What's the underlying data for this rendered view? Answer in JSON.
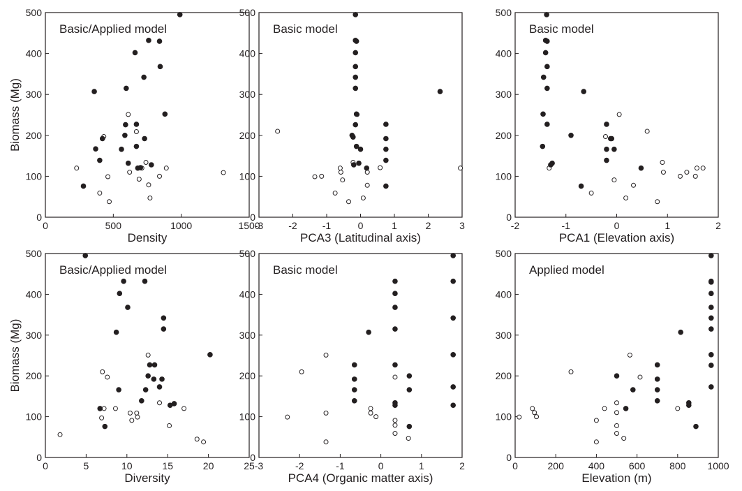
{
  "chart_data": [
    {
      "type": "scatter",
      "title": "Basic/Applied model",
      "xlabel": "Density",
      "ylabel": "Biomass (Mg)",
      "xlim": [
        0,
        1500
      ],
      "ylim": [
        0,
        500
      ],
      "xticks": [
        "0",
        "500",
        "1000",
        "1500"
      ],
      "yticks": [
        "0",
        "100",
        "200",
        "300",
        "400",
        "500"
      ],
      "filled": [
        [
          990,
          495
        ],
        [
          760,
          432
        ],
        [
          840,
          430
        ],
        [
          660,
          402
        ],
        [
          845,
          368
        ],
        [
          725,
          342
        ],
        [
          360,
          307
        ],
        [
          595,
          315
        ],
        [
          880,
          252
        ],
        [
          670,
          227
        ],
        [
          590,
          226
        ],
        [
          420,
          192
        ],
        [
          585,
          200
        ],
        [
          730,
          192
        ],
        [
          670,
          173
        ],
        [
          370,
          167
        ],
        [
          560,
          166
        ],
        [
          400,
          139
        ],
        [
          780,
          128
        ],
        [
          610,
          132
        ],
        [
          700,
          121
        ],
        [
          680,
          120
        ],
        [
          280,
          76
        ]
      ],
      "hollow": [
        [
          610,
          251
        ],
        [
          430,
          197
        ],
        [
          670,
          209
        ],
        [
          740,
          134
        ],
        [
          230,
          120
        ],
        [
          620,
          110
        ],
        [
          710,
          120
        ],
        [
          460,
          99
        ],
        [
          690,
          93
        ],
        [
          890,
          120
        ],
        [
          840,
          100
        ],
        [
          1310,
          109
        ],
        [
          760,
          79
        ],
        [
          400,
          59
        ],
        [
          470,
          38
        ],
        [
          770,
          47
        ]
      ]
    },
    {
      "type": "scatter",
      "title": "Basic model",
      "xlabel": "PCA3 (Latitudinal axis)",
      "ylabel": "",
      "xlim": [
        -3,
        3
      ],
      "ylim": [
        0,
        500
      ],
      "xticks": [
        "-3",
        "-2",
        "-1",
        "0",
        "1",
        "2",
        "3"
      ],
      "yticks": [
        "0",
        "100",
        "200",
        "300",
        "400",
        "500"
      ],
      "filled": [
        [
          -0.15,
          495
        ],
        [
          -0.15,
          432
        ],
        [
          -0.12,
          430
        ],
        [
          -0.15,
          402
        ],
        [
          -0.15,
          368
        ],
        [
          -0.15,
          342
        ],
        [
          -0.15,
          315
        ],
        [
          2.35,
          307
        ],
        [
          -0.12,
          252
        ],
        [
          0.75,
          227
        ],
        [
          -0.15,
          226
        ],
        [
          -0.25,
          200
        ],
        [
          0.75,
          192
        ],
        [
          -0.22,
          196
        ],
        [
          -0.12,
          173
        ],
        [
          0.75,
          166
        ],
        [
          0.0,
          166
        ],
        [
          0.75,
          139
        ],
        [
          -0.05,
          132
        ],
        [
          -0.2,
          128
        ],
        [
          0.18,
          120
        ],
        [
          0.75,
          76
        ]
      ],
      "hollow": [
        [
          -2.45,
          210
        ],
        [
          -0.1,
          251
        ],
        [
          -0.22,
          134
        ],
        [
          -0.6,
          120
        ],
        [
          0.58,
          121
        ],
        [
          -0.58,
          110
        ],
        [
          0.2,
          110
        ],
        [
          -1.35,
          99
        ],
        [
          -1.15,
          100
        ],
        [
          -0.53,
          91
        ],
        [
          2.95,
          120
        ],
        [
          0.2,
          78
        ],
        [
          -0.75,
          59
        ],
        [
          0.08,
          47
        ],
        [
          -0.35,
          38
        ]
      ]
    },
    {
      "type": "scatter",
      "title": "Basic model",
      "xlabel": "PCA1 (Elevation axis)",
      "ylabel": "",
      "xlim": [
        -2,
        2
      ],
      "ylim": [
        0,
        500
      ],
      "xticks": [
        "-2",
        "-1",
        "0",
        "1",
        "2"
      ],
      "yticks": [
        "0",
        "100",
        "200",
        "300",
        "400",
        "500"
      ],
      "filled": [
        [
          -1.38,
          495
        ],
        [
          -1.4,
          432
        ],
        [
          -1.37,
          430
        ],
        [
          -1.4,
          402
        ],
        [
          -1.37,
          368
        ],
        [
          -1.44,
          342
        ],
        [
          -1.37,
          315
        ],
        [
          -0.65,
          307
        ],
        [
          -1.45,
          252
        ],
        [
          -1.37,
          227
        ],
        [
          -0.2,
          227
        ],
        [
          -0.9,
          200
        ],
        [
          -0.1,
          192
        ],
        [
          -0.12,
          192
        ],
        [
          -1.46,
          173
        ],
        [
          -0.2,
          166
        ],
        [
          -0.05,
          166
        ],
        [
          -0.2,
          139
        ],
        [
          -1.27,
          132
        ],
        [
          -1.3,
          128
        ],
        [
          0.48,
          120
        ],
        [
          -0.7,
          76
        ]
      ],
      "hollow": [
        [
          0.05,
          251
        ],
        [
          -0.22,
          197
        ],
        [
          0.6,
          210
        ],
        [
          0.9,
          134
        ],
        [
          -1.33,
          120
        ],
        [
          1.58,
          120
        ],
        [
          1.7,
          120
        ],
        [
          0.92,
          110
        ],
        [
          1.38,
          110
        ],
        [
          1.25,
          100
        ],
        [
          1.55,
          100
        ],
        [
          -0.05,
          91
        ],
        [
          0.33,
          78
        ],
        [
          -0.5,
          59
        ],
        [
          0.18,
          47
        ],
        [
          0.8,
          38
        ]
      ]
    },
    {
      "type": "scatter",
      "title": "Basic/Applied model",
      "xlabel": "Diversity",
      "ylabel": "Biomass (Mg)",
      "xlim": [
        0,
        25
      ],
      "ylim": [
        0,
        500
      ],
      "xticks": [
        "0",
        "5",
        "10",
        "15",
        "20",
        "25"
      ],
      "yticks": [
        "0",
        "100",
        "200",
        "300",
        "400",
        "500"
      ],
      "filled": [
        [
          4.9,
          495
        ],
        [
          9.6,
          432
        ],
        [
          12.2,
          432
        ],
        [
          9.1,
          402
        ],
        [
          10.1,
          368
        ],
        [
          14.5,
          342
        ],
        [
          8.7,
          307
        ],
        [
          14.5,
          315
        ],
        [
          20.2,
          252
        ],
        [
          12.8,
          227
        ],
        [
          13.4,
          227
        ],
        [
          12.6,
          200
        ],
        [
          13.3,
          192
        ],
        [
          14.3,
          192
        ],
        [
          9.0,
          166
        ],
        [
          14.0,
          173
        ],
        [
          11.8,
          139
        ],
        [
          15.8,
          132
        ],
        [
          12.3,
          166
        ],
        [
          6.7,
          120
        ],
        [
          15.3,
          128
        ],
        [
          7.3,
          76
        ]
      ],
      "hollow": [
        [
          12.6,
          251
        ],
        [
          7.0,
          210
        ],
        [
          7.6,
          197
        ],
        [
          8.6,
          120
        ],
        [
          7.2,
          120
        ],
        [
          14.0,
          134
        ],
        [
          17.0,
          120
        ],
        [
          10.4,
          109
        ],
        [
          11.2,
          109
        ],
        [
          6.9,
          97
        ],
        [
          10.6,
          91
        ],
        [
          11.3,
          99
        ],
        [
          15.2,
          78
        ],
        [
          1.8,
          56
        ],
        [
          18.6,
          45
        ],
        [
          19.4,
          38
        ]
      ]
    },
    {
      "type": "scatter",
      "title": "Basic model",
      "xlabel": "PCA4 (Organic matter axis)",
      "ylabel": "",
      "xlim": [
        -3,
        2
      ],
      "ylim": [
        0,
        500
      ],
      "xticks": [
        "-3",
        "-2",
        "-1",
        "0",
        "1",
        "2"
      ],
      "yticks": [
        "0",
        "100",
        "200",
        "300",
        "400",
        "500"
      ],
      "filled": [
        [
          1.78,
          495
        ],
        [
          0.35,
          432
        ],
        [
          1.78,
          432
        ],
        [
          0.35,
          402
        ],
        [
          0.35,
          368
        ],
        [
          1.78,
          342
        ],
        [
          0.35,
          315
        ],
        [
          -0.3,
          307
        ],
        [
          1.78,
          252
        ],
        [
          -0.65,
          227
        ],
        [
          0.35,
          227
        ],
        [
          -0.65,
          192
        ],
        [
          0.7,
          200
        ],
        [
          -0.65,
          166
        ],
        [
          0.7,
          166
        ],
        [
          1.78,
          173
        ],
        [
          -0.65,
          139
        ],
        [
          0.35,
          134
        ],
        [
          0.35,
          128
        ],
        [
          1.78,
          128
        ],
        [
          0.7,
          76
        ]
      ],
      "hollow": [
        [
          -1.35,
          251
        ],
        [
          -1.95,
          210
        ],
        [
          0.35,
          197
        ],
        [
          -0.25,
          120
        ],
        [
          -0.25,
          109
        ],
        [
          -1.35,
          109
        ],
        [
          -0.12,
          100
        ],
        [
          -2.3,
          99
        ],
        [
          0.35,
          91
        ],
        [
          0.35,
          79
        ],
        [
          0.35,
          59
        ],
        [
          0.68,
          47
        ],
        [
          -1.35,
          38
        ]
      ]
    },
    {
      "type": "scatter",
      "title": "Applied model",
      "xlabel": "Elevation (m)",
      "ylabel": "",
      "xlim": [
        0,
        1000
      ],
      "ylim": [
        0,
        500
      ],
      "xticks": [
        "0",
        "200",
        "400",
        "600",
        "800",
        "1000"
      ],
      "yticks": [
        "0",
        "100",
        "200",
        "300",
        "400",
        "500"
      ],
      "filled": [
        [
          965,
          495
        ],
        [
          965,
          432
        ],
        [
          965,
          430
        ],
        [
          965,
          402
        ],
        [
          965,
          368
        ],
        [
          965,
          342
        ],
        [
          965,
          315
        ],
        [
          815,
          307
        ],
        [
          965,
          252
        ],
        [
          700,
          227
        ],
        [
          965,
          226
        ],
        [
          500,
          200
        ],
        [
          700,
          192
        ],
        [
          965,
          173
        ],
        [
          580,
          166
        ],
        [
          700,
          166
        ],
        [
          700,
          139
        ],
        [
          855,
          134
        ],
        [
          855,
          128
        ],
        [
          545,
          120
        ],
        [
          890,
          76
        ]
      ],
      "hollow": [
        [
          565,
          251
        ],
        [
          615,
          197
        ],
        [
          275,
          210
        ],
        [
          500,
          134
        ],
        [
          85,
          120
        ],
        [
          440,
          120
        ],
        [
          800,
          120
        ],
        [
          95,
          110
        ],
        [
          500,
          110
        ],
        [
          105,
          100
        ],
        [
          20,
          99
        ],
        [
          400,
          91
        ],
        [
          500,
          78
        ],
        [
          500,
          59
        ],
        [
          535,
          47
        ],
        [
          400,
          38
        ]
      ]
    }
  ]
}
